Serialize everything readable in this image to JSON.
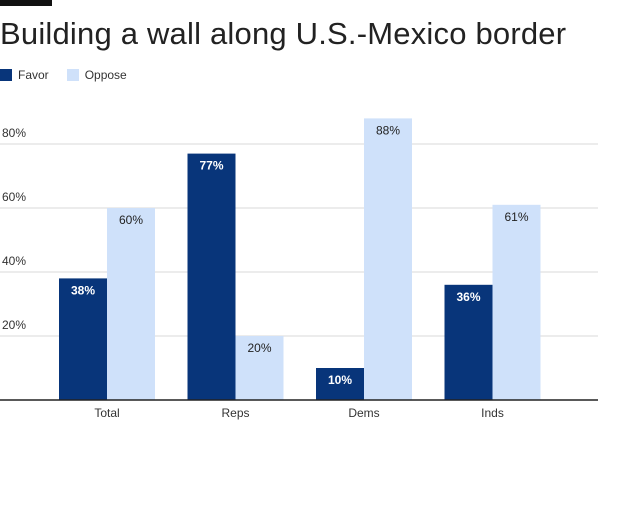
{
  "colors": {
    "favor": "#08357a",
    "oppose": "#cfe1fa",
    "grid": "#d9d9d9",
    "axis": "#222222"
  },
  "chart_data": {
    "type": "bar",
    "title": "Building a wall along U.S.-Mexico border",
    "categories": [
      "Total",
      "Reps",
      "Dems",
      "Inds"
    ],
    "series": [
      {
        "name": "Favor",
        "values": [
          38,
          77,
          10,
          36
        ],
        "labels": [
          "38%",
          "77%",
          "10%",
          "36%"
        ]
      },
      {
        "name": "Oppose",
        "values": [
          60,
          20,
          88,
          61
        ],
        "labels": [
          "60%",
          "20%",
          "88%",
          "61%"
        ]
      }
    ],
    "yticks": [
      20,
      40,
      60,
      80
    ],
    "ytick_labels": [
      "20%",
      "40%",
      "60%",
      "80%"
    ],
    "ylim": [
      0,
      90
    ],
    "xlabel": "",
    "ylabel": "",
    "legend_position": "top-left"
  }
}
